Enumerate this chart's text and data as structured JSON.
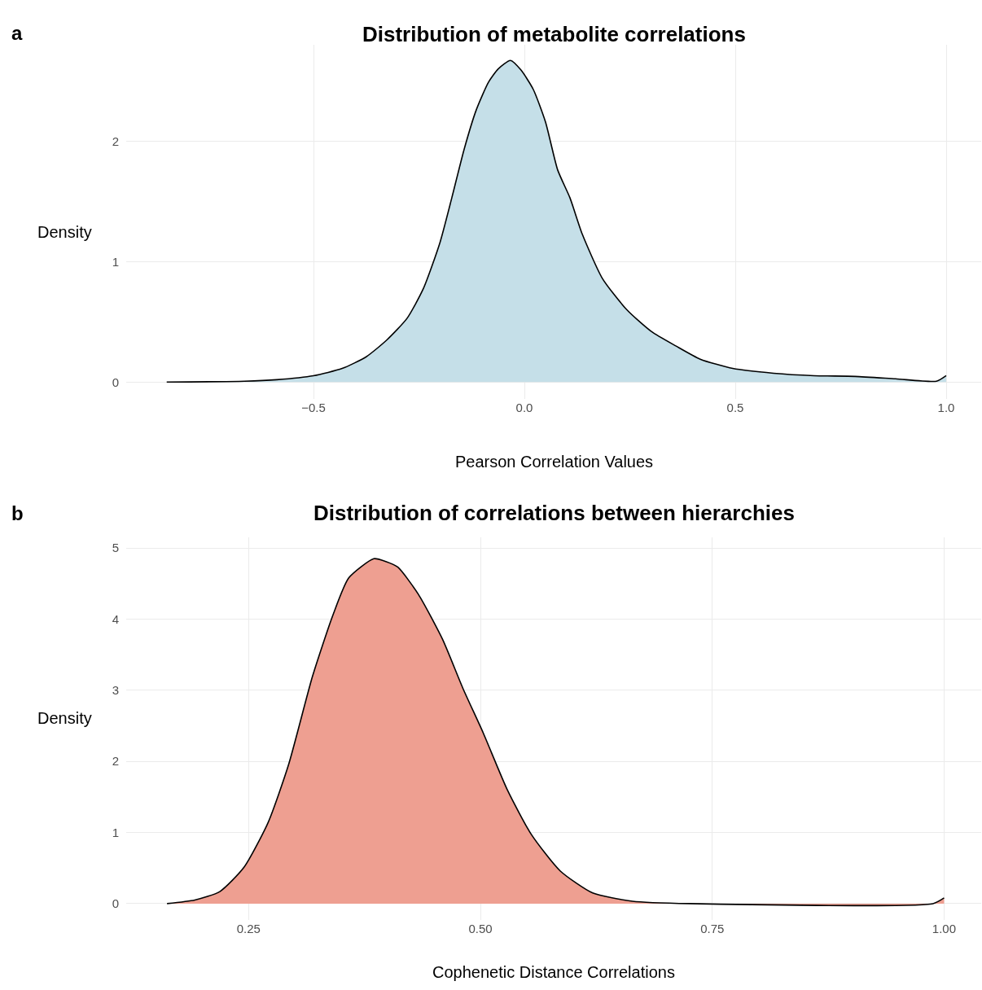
{
  "chart_data": [
    {
      "type": "area",
      "title": "Distribution of metabolite correlations",
      "xlabel": "Pearson Correlation Values",
      "ylabel": "Density",
      "annotations": [
        "a"
      ],
      "color": "#c5dfe8",
      "grid": true,
      "legend": false,
      "x": [
        -0.848,
        -0.664,
        -0.587,
        -0.5,
        -0.432,
        -0.375,
        -0.326,
        -0.278,
        -0.239,
        -0.2,
        -0.172,
        -0.143,
        -0.114,
        -0.085,
        -0.062,
        -0.033,
        -0.008,
        0.021,
        0.05,
        0.079,
        0.108,
        0.137,
        0.185,
        0.243,
        0.301,
        0.359,
        0.417,
        0.494,
        0.591,
        0.687,
        0.784,
        0.88,
        0.977,
        1.0
      ],
      "values": [
        0,
        0.007,
        0.02,
        0.053,
        0.113,
        0.21,
        0.35,
        0.53,
        0.78,
        1.16,
        1.53,
        1.93,
        2.26,
        2.49,
        2.6,
        2.67,
        2.59,
        2.43,
        2.16,
        1.76,
        1.53,
        1.23,
        0.86,
        0.6,
        0.42,
        0.3,
        0.19,
        0.113,
        0.073,
        0.053,
        0.047,
        0.027,
        0.007,
        0.053
      ],
      "xlim": [
        -0.944,
        1.083
      ],
      "ylim": [
        -0.14,
        2.8
      ],
      "xticks": [
        {
          "value": -0.5,
          "label": "−0.5"
        },
        {
          "value": 0,
          "label": "0.0"
        },
        0.5,
        {
          "value": 1,
          "label": "1.0"
        }
      ],
      "yticks": [
        0,
        1,
        2
      ]
    },
    {
      "type": "area",
      "title": "Distribution of correlations between hierarchies",
      "xlabel": "Cophenetic Distance Correlations",
      "ylabel": "Density",
      "annotations": [
        "b"
      ],
      "color": "#ee9f91",
      "grid": true,
      "legend": false,
      "x": [
        0.162,
        0.192,
        0.219,
        0.245,
        0.271,
        0.293,
        0.319,
        0.341,
        0.358,
        0.385,
        0.398,
        0.411,
        0.433,
        0.459,
        0.481,
        0.503,
        0.529,
        0.555,
        0.586,
        0.621,
        0.664,
        0.726,
        0.988,
        1.0
      ],
      "values": [
        0,
        0.05,
        0.17,
        0.51,
        1.14,
        1.95,
        3.2,
        4.06,
        4.58,
        4.85,
        4.81,
        4.73,
        4.35,
        3.72,
        3.03,
        2.4,
        1.6,
        0.97,
        0.46,
        0.15,
        0.034,
        0,
        0,
        0.08
      ],
      "xlim": [
        0.118,
        1.04
      ],
      "ylim": [
        -0.23,
        5.15
      ],
      "xticks": [
        0.25,
        {
          "value": 0.5,
          "label": "0.50"
        },
        0.75,
        {
          "value": 1,
          "label": "1.00"
        }
      ],
      "yticks": [
        0,
        1,
        2,
        3,
        4,
        5
      ]
    }
  ]
}
